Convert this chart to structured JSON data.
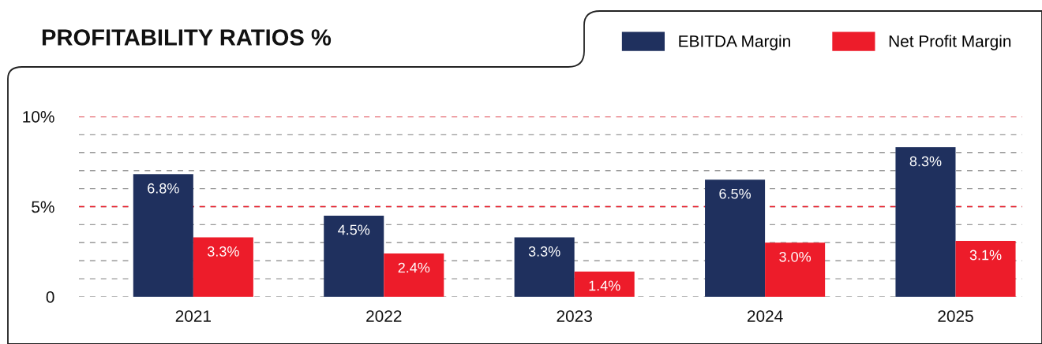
{
  "chart_data": {
    "type": "bar",
    "title": "PROFITABILITY RATIOS %",
    "categories": [
      "2021",
      "2022",
      "2023",
      "2024",
      "2025"
    ],
    "series": [
      {
        "name": "EBITDA Margin",
        "color": "#1f305e",
        "values": [
          6.8,
          4.5,
          3.3,
          6.5,
          8.3
        ],
        "value_labels": [
          "6.8%",
          "4.5%",
          "3.3%",
          "6.5%",
          "8.3%"
        ]
      },
      {
        "name": "Net Profit Margin",
        "color": "#ed1c2a",
        "values": [
          3.3,
          2.4,
          1.4,
          3.0,
          3.1
        ],
        "value_labels": [
          "3.3%",
          "2.4%",
          "1.4%",
          "3.0%",
          "3.1%"
        ]
      }
    ],
    "ylim": [
      0,
      10
    ],
    "yticks": [
      0,
      {
        "value": 1,
        "label": null
      },
      {
        "value": 2,
        "label": null
      },
      {
        "value": 3,
        "label": null
      },
      {
        "value": 4,
        "label": null
      },
      {
        "value": 5,
        "label": "5%"
      },
      {
        "value": 6,
        "label": null
      },
      {
        "value": 7,
        "label": null
      },
      {
        "value": 8,
        "label": null
      },
      {
        "value": 9,
        "label": null
      },
      {
        "value": 10,
        "label": "10%"
      }
    ],
    "grid": "y",
    "ref_lines": [
      {
        "axis": "y",
        "value": 5,
        "label": null,
        "color": "#ed1c2a",
        "line_style": "dashed"
      },
      {
        "axis": "y",
        "value": 10,
        "label": null,
        "color": "#ed1c2a",
        "line_style": "dashed"
      }
    ],
    "legend": "top right"
  }
}
